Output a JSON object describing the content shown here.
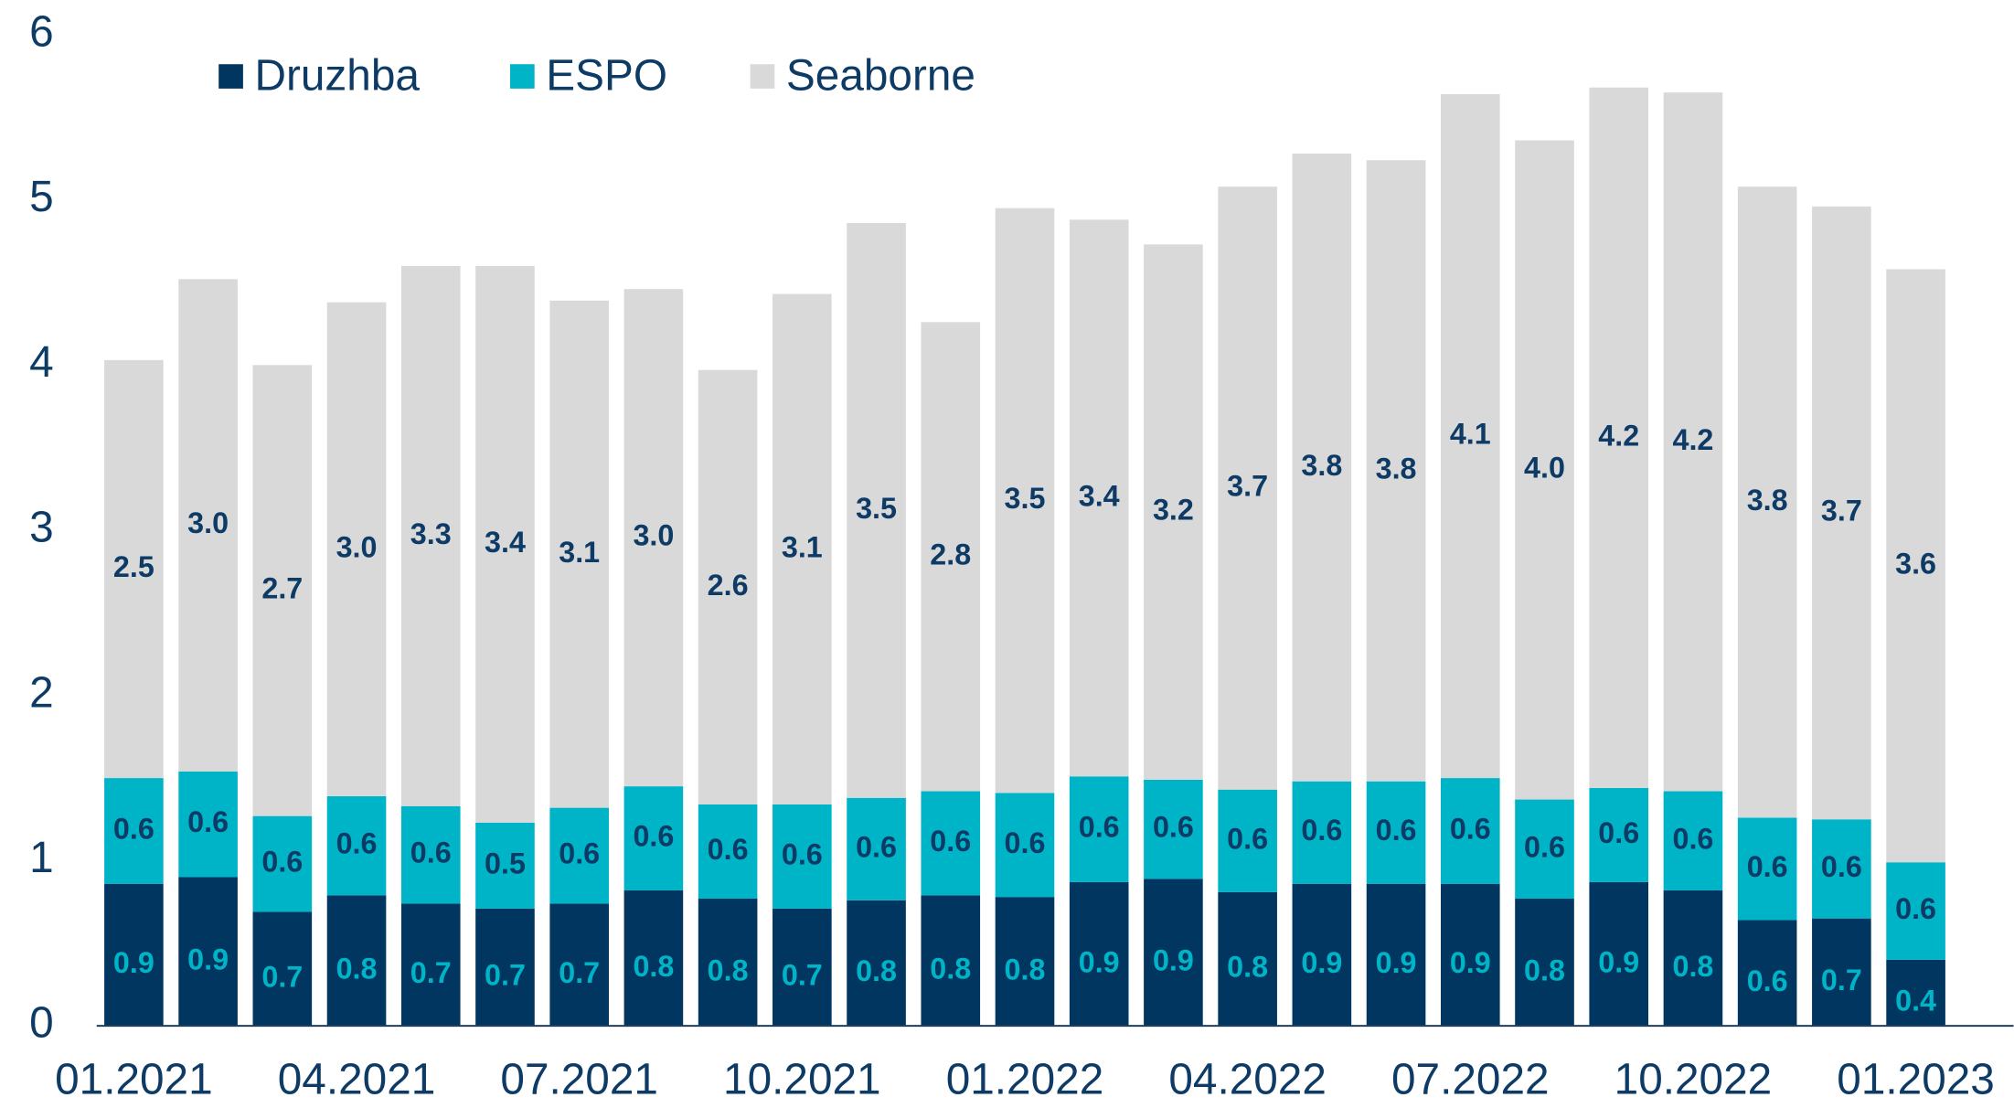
{
  "chart_data": {
    "type": "stacked_bar",
    "categories": [
      "01.2021",
      null,
      null,
      "04.2021",
      null,
      null,
      "07.2021",
      null,
      null,
      "10.2021",
      null,
      null,
      "01.2022",
      null,
      null,
      "04.2022",
      null,
      null,
      "07.2022",
      null,
      null,
      "10.2022",
      null,
      null,
      "01.2023"
    ],
    "series": [
      {
        "name": "Druzhba",
        "color": "#003660",
        "label_color": "#00b4c8",
        "values": [
          0.86,
          0.9,
          0.69,
          0.79,
          0.74,
          0.71,
          0.74,
          0.82,
          0.77,
          0.71,
          0.76,
          0.79,
          0.78,
          0.87,
          0.89,
          0.81,
          0.86,
          0.86,
          0.86,
          0.77,
          0.87,
          0.82,
          0.64,
          0.65,
          0.4
        ],
        "value_labels": [
          "0.9",
          "0.9",
          "0.7",
          "0.8",
          "0.7",
          "0.7",
          "0.7",
          "0.8",
          "0.8",
          "0.7",
          "0.8",
          "0.8",
          "0.8",
          "0.9",
          "0.9",
          "0.8",
          "0.9",
          "0.9",
          "0.9",
          "0.8",
          "0.9",
          "0.8",
          "0.6",
          "0.7",
          "0.4"
        ]
      },
      {
        "name": "ESPO",
        "color": "#00b4c8",
        "label_color": "#0d3b66",
        "values": [
          0.64,
          0.64,
          0.58,
          0.6,
          0.59,
          0.52,
          0.58,
          0.63,
          0.57,
          0.63,
          0.62,
          0.63,
          0.63,
          0.64,
          0.6,
          0.62,
          0.62,
          0.62,
          0.64,
          0.6,
          0.57,
          0.6,
          0.62,
          0.6,
          0.59
        ],
        "value_labels": [
          "0.6",
          "0.6",
          "0.6",
          "0.6",
          "0.6",
          "0.5",
          "0.6",
          "0.6",
          "0.6",
          "0.6",
          "0.6",
          "0.6",
          "0.6",
          "0.6",
          "0.6",
          "0.6",
          "0.6",
          "0.6",
          "0.6",
          "0.6",
          "0.6",
          "0.6",
          "0.6",
          "0.6",
          "0.6"
        ]
      },
      {
        "name": "Seaborne",
        "color": "#d9d9d9",
        "label_color": "#0d3b66",
        "values": [
          2.53,
          2.98,
          2.73,
          2.99,
          3.27,
          3.37,
          3.07,
          3.01,
          2.63,
          3.09,
          3.48,
          2.84,
          3.54,
          3.37,
          3.24,
          3.65,
          3.8,
          3.76,
          4.14,
          3.99,
          4.24,
          4.23,
          3.82,
          3.71,
          3.59
        ],
        "value_labels": [
          "2.5",
          "3.0",
          "2.7",
          "3.0",
          "3.3",
          "3.4",
          "3.1",
          "3.0",
          "2.6",
          "3.1",
          "3.5",
          "2.8",
          "3.5",
          "3.4",
          "3.2",
          "3.7",
          "3.8",
          "3.8",
          "4.1",
          "4.0",
          "4.2",
          "4.2",
          "3.8",
          "3.7",
          "3.6"
        ]
      }
    ],
    "ylim": [
      0,
      6
    ],
    "yticks": [
      0,
      1,
      2,
      3,
      4,
      5,
      6
    ],
    "grid": false,
    "legend": "top-left"
  }
}
